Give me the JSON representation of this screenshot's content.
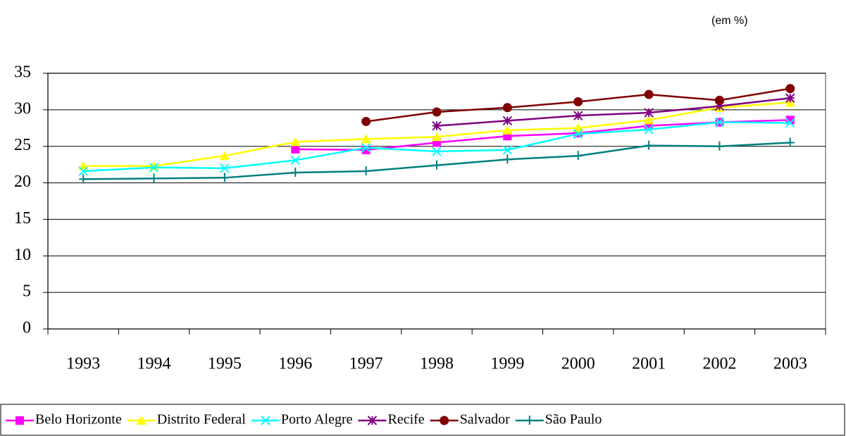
{
  "chart_data": {
    "type": "line",
    "annotation": "(em %)",
    "categories": [
      "1993",
      "1994",
      "1995",
      "1996",
      "1997",
      "1998",
      "1999",
      "2000",
      "2001",
      "2002",
      "2003"
    ],
    "ylim": [
      0,
      35
    ],
    "yticks": [
      0,
      5,
      10,
      15,
      20,
      25,
      30,
      35
    ],
    "grid": true,
    "legend": "bottom",
    "series": [
      {
        "name": "Belo Horizonte",
        "color": "#ff00ff",
        "marker": "square",
        "values": [
          null,
          null,
          null,
          24.6,
          24.5,
          25.5,
          26.4,
          26.8,
          27.8,
          28.3,
          28.6
        ]
      },
      {
        "name": "Distrito Federal",
        "color": "#ffff00",
        "marker": "triangle",
        "values": [
          22.3,
          22.3,
          23.7,
          25.6,
          26.0,
          26.3,
          27.2,
          27.5,
          28.6,
          30.3,
          31.0
        ]
      },
      {
        "name": "Porto Alegre",
        "color": "#00ffff",
        "marker": "x",
        "values": [
          21.6,
          22.1,
          22.0,
          23.1,
          24.8,
          24.3,
          24.5,
          26.7,
          27.3,
          28.3,
          28.2
        ]
      },
      {
        "name": "Recife",
        "color": "#800080",
        "marker": "star",
        "values": [
          null,
          null,
          null,
          null,
          null,
          27.8,
          28.5,
          29.2,
          29.6,
          30.5,
          31.6
        ]
      },
      {
        "name": "Salvador",
        "color": "#800000",
        "marker": "circle",
        "values": [
          null,
          null,
          null,
          null,
          28.4,
          29.7,
          30.3,
          31.1,
          32.1,
          31.3,
          32.9
        ]
      },
      {
        "name": "São Paulo",
        "color": "#008080",
        "marker": "plus",
        "values": [
          20.5,
          20.6,
          20.7,
          21.4,
          21.6,
          22.4,
          23.2,
          23.7,
          25.1,
          25.0,
          25.5
        ]
      }
    ]
  }
}
